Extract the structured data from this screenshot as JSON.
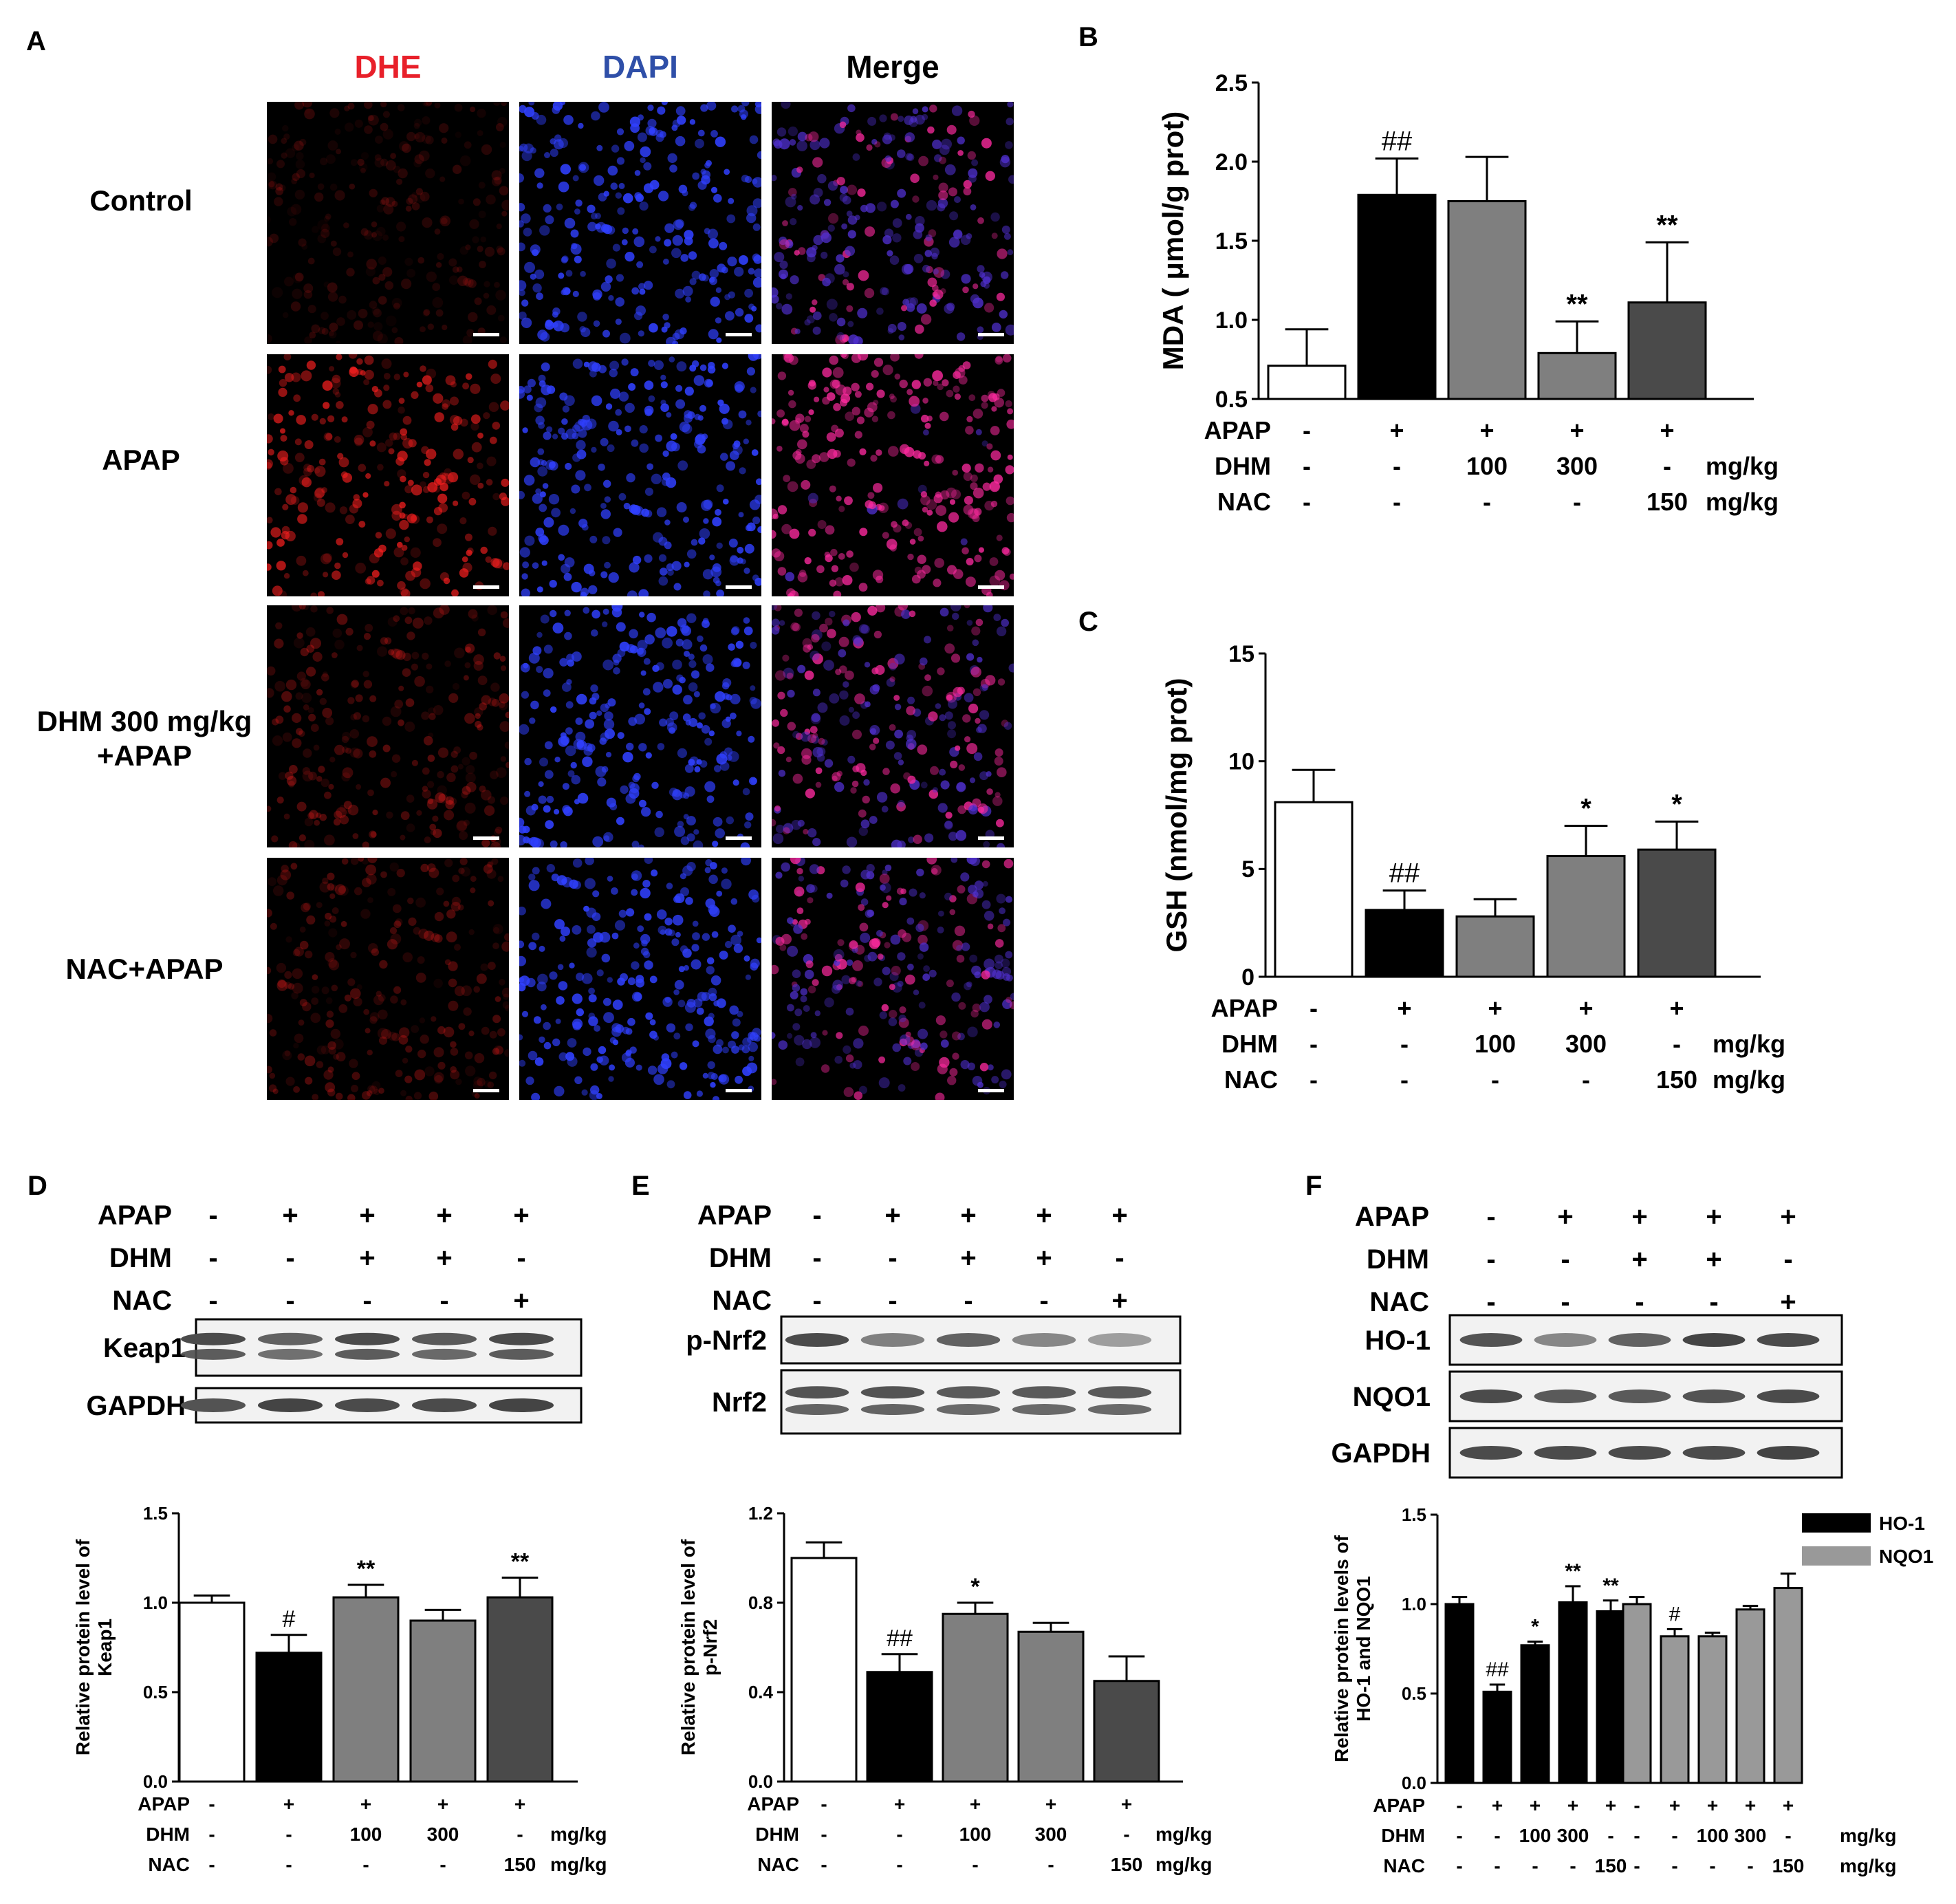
{
  "panels": {
    "A": {
      "letter": "A",
      "columns": [
        {
          "label": "DHE",
          "color": "#e8202a"
        },
        {
          "label": "DAPI",
          "color": "#2f4fa8"
        },
        {
          "label": "Merge",
          "color": "#000000"
        }
      ],
      "rows": [
        {
          "label_lines": [
            "Control"
          ],
          "dhe": 0.25
        },
        {
          "label_lines": [
            "APAP"
          ],
          "dhe": 0.95
        },
        {
          "label_lines": [
            "DHM 300 mg/kg",
            "+APAP"
          ],
          "dhe": 0.45
        },
        {
          "label_lines": [
            "NAC+APAP"
          ],
          "dhe": 0.4
        }
      ]
    },
    "B": {
      "letter": "B",
      "chart_data": {
        "type": "bar",
        "ylabel": "MDA ( μmol/g prot)",
        "ylim": [
          0.5,
          2.5
        ],
        "yticks": [
          "0.5",
          "1.0",
          "1.5",
          "2.0",
          "2.5"
        ],
        "values": [
          0.71,
          1.79,
          1.75,
          0.79,
          1.11
        ],
        "errors": [
          0.23,
          0.23,
          0.28,
          0.2,
          0.38
        ],
        "fills": [
          "#ffffff",
          "#000000",
          "#7f7f7f",
          "#7f7f7f",
          "#4a4a4a"
        ],
        "annotations": [
          "",
          "##",
          "",
          "**",
          "**"
        ],
        "conditions": [
          {
            "name": "APAP",
            "values": [
              "-",
              "+",
              "+",
              "+",
              "+"
            ],
            "unit": ""
          },
          {
            "name": "DHM",
            "values": [
              "-",
              "-",
              "100",
              "300",
              "-"
            ],
            "unit": "mg/kg"
          },
          {
            "name": "NAC",
            "values": [
              "-",
              "-",
              "-",
              "-",
              "150"
            ],
            "unit": "mg/kg"
          }
        ]
      }
    },
    "C": {
      "letter": "C",
      "chart_data": {
        "type": "bar",
        "ylabel": "GSH (nmol/mg prot)",
        "ylim": [
          0,
          15
        ],
        "yticks": [
          "0",
          "5",
          "10",
          "15"
        ],
        "values": [
          8.1,
          3.1,
          2.8,
          5.6,
          5.9
        ],
        "errors": [
          1.5,
          0.9,
          0.8,
          1.4,
          1.3
        ],
        "fills": [
          "#ffffff",
          "#000000",
          "#7f7f7f",
          "#7f7f7f",
          "#4a4a4a"
        ],
        "annotations": [
          "",
          "##",
          "",
          "*",
          "*"
        ],
        "conditions": [
          {
            "name": "APAP",
            "values": [
              "-",
              "+",
              "+",
              "+",
              "+"
            ],
            "unit": ""
          },
          {
            "name": "DHM",
            "values": [
              "-",
              "-",
              "100",
              "300",
              "-"
            ],
            "unit": "mg/kg"
          },
          {
            "name": "NAC",
            "values": [
              "-",
              "-",
              "-",
              "-",
              "150"
            ],
            "unit": "mg/kg"
          }
        ]
      }
    },
    "D": {
      "letter": "D",
      "blot_conditions": [
        {
          "name": "APAP",
          "values": [
            "-",
            "+",
            "+",
            "+",
            "+"
          ]
        },
        {
          "name": "DHM",
          "values": [
            "-",
            "-",
            "+",
            "+",
            "-"
          ]
        },
        {
          "name": "NAC",
          "values": [
            "-",
            "-",
            "-",
            "-",
            "+"
          ]
        }
      ],
      "blots": [
        {
          "label": "Keap1",
          "double": true,
          "intensity": [
            0.9,
            0.75,
            0.9,
            0.8,
            0.9
          ]
        },
        {
          "label": "GAPDH",
          "double": false,
          "intensity": [
            0.85,
            0.95,
            0.9,
            0.9,
            0.95
          ]
        }
      ],
      "chart_data": {
        "type": "bar",
        "ylabel_lines": [
          "Relative protein level of",
          "Keap1"
        ],
        "ylim": [
          0,
          1.5
        ],
        "yticks": [
          "0.0",
          "0.5",
          "1.0",
          "1.5"
        ],
        "values": [
          1.0,
          0.72,
          1.03,
          0.9,
          1.03
        ],
        "errors": [
          0.04,
          0.1,
          0.07,
          0.06,
          0.11
        ],
        "fills": [
          "#ffffff",
          "#000000",
          "#7f7f7f",
          "#7f7f7f",
          "#4a4a4a"
        ],
        "annotations": [
          "",
          "#",
          "**",
          "",
          "**"
        ],
        "conditions": [
          {
            "name": "APAP",
            "values": [
              "-",
              "+",
              "+",
              "+",
              "+"
            ],
            "unit": ""
          },
          {
            "name": "DHM",
            "values": [
              "-",
              "-",
              "100",
              "300",
              "-"
            ],
            "unit": "mg/kg"
          },
          {
            "name": "NAC",
            "values": [
              "-",
              "-",
              "-",
              "-",
              "150"
            ],
            "unit": "mg/kg"
          }
        ]
      }
    },
    "E": {
      "letter": "E",
      "blot_conditions": [
        {
          "name": "APAP",
          "values": [
            "-",
            "+",
            "+",
            "+",
            "+"
          ]
        },
        {
          "name": "DHM",
          "values": [
            "-",
            "-",
            "+",
            "+",
            "-"
          ]
        },
        {
          "name": "NAC",
          "values": [
            "-",
            "-",
            "-",
            "-",
            "+"
          ]
        }
      ],
      "blots": [
        {
          "label": "p-Nrf2",
          "double": false,
          "intensity": [
            0.9,
            0.55,
            0.75,
            0.5,
            0.35
          ]
        },
        {
          "label": "Nrf2",
          "double": true,
          "intensity": [
            0.85,
            0.85,
            0.8,
            0.8,
            0.8
          ]
        }
      ],
      "chart_data": {
        "type": "bar",
        "ylabel_lines": [
          "Relative protein level of",
          "p-Nrf2"
        ],
        "ylim": [
          0,
          1.2
        ],
        "yticks": [
          "0.0",
          "0.4",
          "0.8",
          "1.2"
        ],
        "values": [
          1.0,
          0.49,
          0.75,
          0.67,
          0.45
        ],
        "errors": [
          0.07,
          0.08,
          0.05,
          0.04,
          0.11
        ],
        "fills": [
          "#ffffff",
          "#000000",
          "#7f7f7f",
          "#7f7f7f",
          "#4a4a4a"
        ],
        "annotations": [
          "",
          "##",
          "*",
          "",
          ""
        ],
        "conditions": [
          {
            "name": "APAP",
            "values": [
              "-",
              "+",
              "+",
              "+",
              "+"
            ],
            "unit": ""
          },
          {
            "name": "DHM",
            "values": [
              "-",
              "-",
              "100",
              "300",
              "-"
            ],
            "unit": "mg/kg"
          },
          {
            "name": "NAC",
            "values": [
              "-",
              "-",
              "-",
              "-",
              "150"
            ],
            "unit": "mg/kg"
          }
        ]
      }
    },
    "F": {
      "letter": "F",
      "blot_conditions": [
        {
          "name": "APAP",
          "values": [
            "-",
            "+",
            "+",
            "+",
            "+"
          ]
        },
        {
          "name": "DHM",
          "values": [
            "-",
            "-",
            "+",
            "+",
            "-"
          ]
        },
        {
          "name": "NAC",
          "values": [
            "-",
            "-",
            "-",
            "-",
            "+"
          ]
        }
      ],
      "blots": [
        {
          "label": "HO-1",
          "double": false,
          "intensity": [
            0.85,
            0.5,
            0.75,
            0.95,
            0.9
          ]
        },
        {
          "label": "NQO1",
          "double": false,
          "intensity": [
            0.9,
            0.8,
            0.8,
            0.85,
            0.9
          ]
        },
        {
          "label": "GAPDH",
          "double": false,
          "intensity": [
            0.9,
            0.9,
            0.9,
            0.9,
            0.95
          ]
        }
      ],
      "chart_data": {
        "type": "bar",
        "ylabel_lines": [
          "Relative protein levels of",
          "HO-1 and NQO1"
        ],
        "ylim": [
          0,
          1.5
        ],
        "yticks": [
          "0.0",
          "0.5",
          "1.0",
          "1.5"
        ],
        "series": [
          {
            "name": "HO-1",
            "color": "#000000",
            "values": [
              1.0,
              0.51,
              0.77,
              1.01,
              0.96
            ],
            "errors": [
              0.04,
              0.04,
              0.02,
              0.09,
              0.06
            ],
            "annotations": [
              "",
              "##",
              "*",
              "**",
              "**"
            ]
          },
          {
            "name": "NQO1",
            "color": "#999999",
            "values": [
              1.0,
              0.82,
              0.82,
              0.97,
              1.09
            ],
            "errors": [
              0.04,
              0.04,
              0.02,
              0.02,
              0.08
            ],
            "annotations": [
              "",
              "#",
              "",
              "",
              ""
            ]
          }
        ],
        "conditions": [
          {
            "name": "APAP",
            "values": [
              "-",
              "+",
              "+",
              "+",
              "+"
            ],
            "unit": ""
          },
          {
            "name": "DHM",
            "values": [
              "-",
              "-",
              "100",
              "300",
              "-"
            ],
            "unit": "mg/kg"
          },
          {
            "name": "NAC",
            "values": [
              "-",
              "-",
              "-",
              "-",
              "150"
            ],
            "unit": "mg/kg"
          }
        ]
      }
    }
  }
}
